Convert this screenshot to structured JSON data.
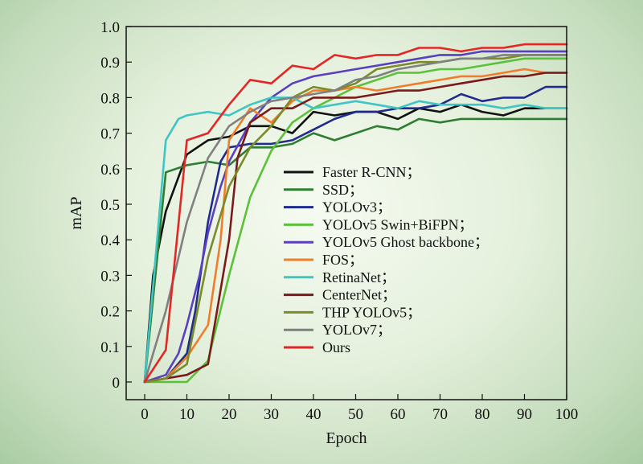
{
  "chart_data": {
    "type": "line",
    "xlabel": "Epoch",
    "ylabel": "mAP",
    "xlim": [
      0,
      100
    ],
    "ylim": [
      0,
      1.0
    ],
    "xticks": [
      "0",
      "10",
      "20",
      "30",
      "40",
      "50",
      "60",
      "70",
      "80",
      "90",
      "100"
    ],
    "yticks": [
      "0",
      "0.1",
      "0.2",
      "0.3",
      "0.4",
      "0.5",
      "0.6",
      "0.7",
      "0.8",
      "0.9",
      "1.0"
    ],
    "legend_position": "center-right",
    "series": [
      {
        "name": "Faster R-CNN；",
        "color": "#111111",
        "x": [
          0,
          2,
          5,
          10,
          15,
          20,
          25,
          30,
          35,
          40,
          45,
          50,
          55,
          60,
          65,
          70,
          75,
          80,
          85,
          90,
          95,
          100
        ],
        "y": [
          0,
          0.3,
          0.48,
          0.64,
          0.68,
          0.69,
          0.72,
          0.72,
          0.7,
          0.76,
          0.75,
          0.76,
          0.76,
          0.74,
          0.77,
          0.76,
          0.78,
          0.76,
          0.75,
          0.77,
          0.77,
          0.77
        ]
      },
      {
        "name": "SSD；",
        "color": "#2e7d32",
        "x": [
          0,
          5,
          10,
          15,
          20,
          25,
          30,
          35,
          40,
          45,
          50,
          55,
          60,
          65,
          70,
          75,
          80,
          85,
          90,
          95,
          100
        ],
        "y": [
          0,
          0.59,
          0.61,
          0.62,
          0.61,
          0.66,
          0.66,
          0.67,
          0.7,
          0.68,
          0.7,
          0.72,
          0.71,
          0.74,
          0.73,
          0.74,
          0.74,
          0.74,
          0.74,
          0.74,
          0.74
        ]
      },
      {
        "name": "YOLOv3；",
        "color": "#1f2b8f",
        "x": [
          0,
          5,
          10,
          12,
          15,
          18,
          20,
          25,
          30,
          35,
          40,
          45,
          50,
          55,
          60,
          65,
          70,
          75,
          80,
          85,
          90,
          95,
          100
        ],
        "y": [
          0,
          0.01,
          0.08,
          0.2,
          0.45,
          0.62,
          0.66,
          0.67,
          0.67,
          0.68,
          0.71,
          0.74,
          0.76,
          0.76,
          0.77,
          0.77,
          0.78,
          0.81,
          0.79,
          0.8,
          0.8,
          0.83,
          0.83
        ]
      },
      {
        "name": "YOLOv5 Swin+BiFPN；",
        "color": "#5cc13a",
        "x": [
          0,
          5,
          10,
          15,
          20,
          25,
          30,
          35,
          40,
          45,
          50,
          55,
          60,
          65,
          70,
          75,
          80,
          85,
          90,
          95,
          100
        ],
        "y": [
          0,
          0,
          0,
          0.06,
          0.3,
          0.52,
          0.65,
          0.73,
          0.77,
          0.8,
          0.83,
          0.85,
          0.87,
          0.87,
          0.88,
          0.88,
          0.89,
          0.9,
          0.91,
          0.91,
          0.91
        ]
      },
      {
        "name": "YOLOv5 Ghost backbone；",
        "color": "#5a3fc0",
        "x": [
          0,
          5,
          8,
          10,
          13,
          15,
          18,
          20,
          25,
          30,
          35,
          40,
          45,
          50,
          55,
          60,
          65,
          70,
          75,
          80,
          85,
          90,
          95,
          100
        ],
        "y": [
          0,
          0.02,
          0.08,
          0.16,
          0.3,
          0.42,
          0.55,
          0.62,
          0.73,
          0.8,
          0.84,
          0.86,
          0.87,
          0.88,
          0.89,
          0.9,
          0.91,
          0.92,
          0.92,
          0.93,
          0.93,
          0.93,
          0.93,
          0.93
        ]
      },
      {
        "name": "FOS；",
        "color": "#f07d2a",
        "x": [
          0,
          5,
          10,
          15,
          18,
          20,
          25,
          30,
          35,
          40,
          45,
          50,
          55,
          60,
          65,
          70,
          75,
          80,
          85,
          90,
          95,
          100
        ],
        "y": [
          0,
          0.01,
          0.07,
          0.16,
          0.4,
          0.68,
          0.77,
          0.73,
          0.79,
          0.82,
          0.82,
          0.83,
          0.82,
          0.83,
          0.84,
          0.85,
          0.86,
          0.86,
          0.87,
          0.88,
          0.87,
          0.87
        ]
      },
      {
        "name": "RetinaNet；",
        "color": "#40c4c4",
        "x": [
          0,
          5,
          8,
          10,
          15,
          20,
          25,
          30,
          35,
          40,
          45,
          50,
          55,
          60,
          65,
          70,
          75,
          80,
          85,
          90,
          95,
          100
        ],
        "y": [
          0,
          0.68,
          0.74,
          0.75,
          0.76,
          0.75,
          0.78,
          0.8,
          0.8,
          0.77,
          0.78,
          0.79,
          0.78,
          0.77,
          0.79,
          0.78,
          0.78,
          0.78,
          0.77,
          0.78,
          0.77,
          0.77
        ]
      },
      {
        "name": "CenterNet；",
        "color": "#7a1a1a",
        "x": [
          0,
          5,
          10,
          15,
          20,
          22,
          25,
          30,
          35,
          40,
          45,
          50,
          55,
          60,
          65,
          70,
          75,
          80,
          85,
          90,
          95,
          100
        ],
        "y": [
          0,
          0.01,
          0.02,
          0.05,
          0.4,
          0.63,
          0.73,
          0.77,
          0.77,
          0.8,
          0.8,
          0.8,
          0.81,
          0.82,
          0.82,
          0.83,
          0.84,
          0.85,
          0.86,
          0.86,
          0.87,
          0.87
        ]
      },
      {
        "name": "THP YOLOv5；",
        "color": "#7b8a2a",
        "x": [
          0,
          5,
          10,
          15,
          20,
          25,
          30,
          35,
          40,
          45,
          50,
          55,
          60,
          65,
          70,
          75,
          80,
          85,
          90,
          95,
          100
        ],
        "y": [
          0,
          0.01,
          0.05,
          0.35,
          0.55,
          0.66,
          0.72,
          0.8,
          0.83,
          0.82,
          0.84,
          0.88,
          0.89,
          0.9,
          0.9,
          0.91,
          0.91,
          0.91,
          0.92,
          0.92,
          0.92
        ]
      },
      {
        "name": "YOLOv7；",
        "color": "#808080",
        "x": [
          0,
          5,
          10,
          15,
          20,
          25,
          30,
          35,
          40,
          45,
          50,
          55,
          60,
          65,
          70,
          75,
          80,
          85,
          90,
          95,
          100
        ],
        "y": [
          0,
          0.2,
          0.45,
          0.63,
          0.72,
          0.76,
          0.79,
          0.8,
          0.81,
          0.82,
          0.85,
          0.86,
          0.88,
          0.89,
          0.9,
          0.91,
          0.91,
          0.92,
          0.92,
          0.92,
          0.92
        ]
      },
      {
        "name": "Ours",
        "color": "#e32626",
        "x": [
          0,
          5,
          10,
          15,
          20,
          25,
          30,
          35,
          40,
          45,
          50,
          55,
          60,
          65,
          70,
          75,
          80,
          85,
          90,
          95,
          100
        ],
        "y": [
          0,
          0.09,
          0.68,
          0.7,
          0.78,
          0.85,
          0.84,
          0.89,
          0.88,
          0.92,
          0.91,
          0.92,
          0.92,
          0.94,
          0.94,
          0.93,
          0.94,
          0.94,
          0.95,
          0.95,
          0.95
        ]
      }
    ]
  }
}
